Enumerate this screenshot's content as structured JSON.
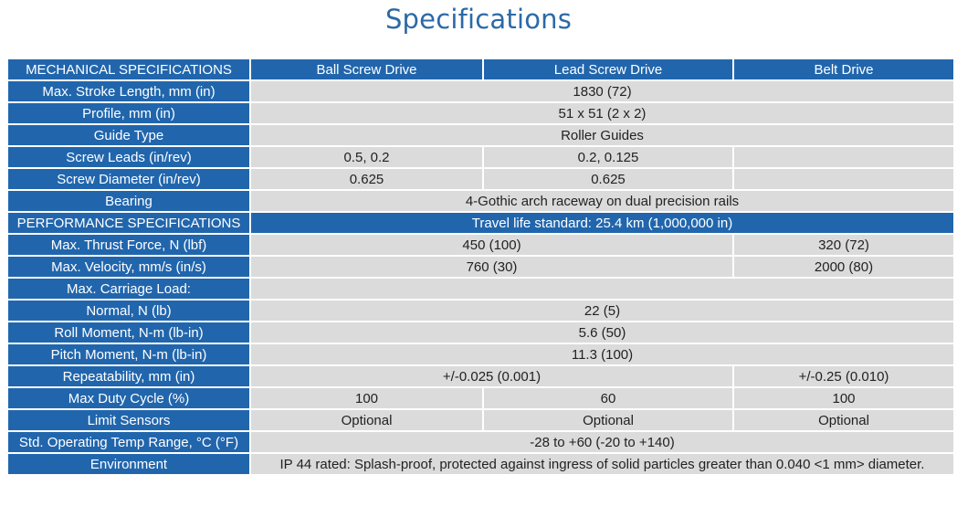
{
  "title": "Specifications",
  "header": {
    "label": "MECHANICAL SPECIFICATIONS",
    "cols": [
      "Ball Screw Drive",
      "Lead Screw Drive",
      "Belt Drive"
    ]
  },
  "rows": {
    "stroke": {
      "label": "Max. Stroke Length, mm (in)",
      "all": "1830 (72)"
    },
    "profile": {
      "label": "Profile, mm (in)",
      "all": "51 x 51 (2 x 2)"
    },
    "guide": {
      "label": "Guide Type",
      "all": "Roller Guides"
    },
    "leads": {
      "label": "Screw Leads (in/rev)",
      "ball": "0.5, 0.2",
      "lead": "0.2, 0.125",
      "belt": ""
    },
    "diameter": {
      "label": "Screw Diameter (in/rev)",
      "ball": "0.625",
      "lead": "0.625",
      "belt": ""
    },
    "bearing": {
      "label": "Bearing",
      "all": "4-Gothic arch raceway on dual precision rails"
    },
    "performance": {
      "label": "PERFORMANCE SPECIFICATIONS",
      "all": "Travel life standard: 25.4 km (1,000,000 in)"
    },
    "thrust": {
      "label": "Max. Thrust Force, N (lbf)",
      "screw": "450 (100)",
      "belt": "320 (72)"
    },
    "velocity": {
      "label": "Max. Velocity, mm/s (in/s)",
      "screw": "760 (30)",
      "belt": "2000 (80)"
    },
    "carriage": {
      "label": "Max. Carriage Load:",
      "all": ""
    },
    "normal": {
      "label": "Normal, N (lb)",
      "all": "22 (5)"
    },
    "roll": {
      "label": "Roll Moment, N-m (lb-in)",
      "all": "5.6 (50)"
    },
    "pitch": {
      "label": "Pitch Moment, N-m (lb-in)",
      "all": "11.3 (100)"
    },
    "repeatability": {
      "label": "Repeatability, mm (in)",
      "screw": "+/-0.025 (0.001)",
      "belt": "+/-0.25 (0.010)"
    },
    "duty": {
      "label": "Max Duty Cycle (%)",
      "ball": "100",
      "lead": "60",
      "belt": "100"
    },
    "sensors": {
      "label": "Limit Sensors",
      "ball": "Optional",
      "lead": "Optional",
      "belt": "Optional"
    },
    "temp": {
      "label": "Std. Operating Temp Range, °C (°F)",
      "all": "-28 to +60 (-20 to +140)"
    },
    "environment": {
      "label": "Environment",
      "all": "IP 44 rated: Splash-proof, protected against ingress of solid particles greater than 0.040 <1 mm> diameter."
    }
  }
}
